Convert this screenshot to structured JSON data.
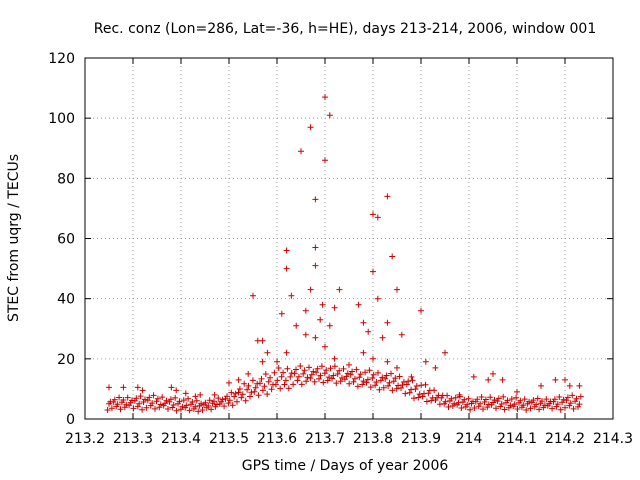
{
  "chart_data": {
    "type": "scatter",
    "title": "Rec. conz (Lon=286, Lat=-36, h=HE), days 213-214, 2006, window 001",
    "xlabel": "GPS time / Days of year 2006",
    "ylabel": "STEC from uqrg / TECUs",
    "xlim": [
      213.2,
      214.3
    ],
    "ylim": [
      0,
      120
    ],
    "x_ticks": [
      213.2,
      213.3,
      213.4,
      213.5,
      213.6,
      213.7,
      213.8,
      213.9,
      214.0,
      214.1,
      214.2,
      214.3
    ],
    "x_tick_labels": [
      "213.2",
      "213.3",
      "213.4",
      "213.5",
      "213.6",
      "213.7",
      "213.8",
      "213.9",
      "214",
      "214.1",
      "214.2",
      "214.3"
    ],
    "y_ticks": [
      0,
      20,
      40,
      60,
      80,
      100,
      120
    ],
    "y_tick_labels": [
      "0",
      "20",
      "40",
      "60",
      "80",
      "100",
      "120"
    ],
    "grid": true,
    "marker": "+",
    "color": "#cc0000",
    "series": [
      {
        "name": "STEC",
        "points": [
          [
            213.25,
            10.5
          ],
          [
            213.28,
            10.5
          ],
          [
            213.31,
            10.5
          ],
          [
            213.32,
            9.5
          ],
          [
            213.38,
            10.5
          ],
          [
            213.39,
            9.5
          ],
          [
            213.41,
            8.5
          ],
          [
            213.43,
            7.5
          ],
          [
            213.55,
            41
          ],
          [
            213.56,
            26
          ],
          [
            213.57,
            26
          ],
          [
            213.58,
            22
          ],
          [
            213.61,
            35
          ],
          [
            213.62,
            56
          ],
          [
            213.62,
            50
          ],
          [
            213.63,
            41
          ],
          [
            213.64,
            31
          ],
          [
            213.65,
            89
          ],
          [
            213.66,
            36
          ],
          [
            213.67,
            97
          ],
          [
            213.67,
            43
          ],
          [
            213.68,
            73
          ],
          [
            213.68,
            57
          ],
          [
            213.68,
            51
          ],
          [
            213.69,
            33
          ],
          [
            213.695,
            38
          ],
          [
            213.7,
            107
          ],
          [
            213.7,
            86
          ],
          [
            213.71,
            101
          ],
          [
            213.71,
            31
          ],
          [
            213.72,
            37
          ],
          [
            213.73,
            43
          ],
          [
            213.77,
            38
          ],
          [
            213.78,
            32
          ],
          [
            213.79,
            29
          ],
          [
            213.8,
            68
          ],
          [
            213.8,
            49
          ],
          [
            213.81,
            67
          ],
          [
            213.81,
            40
          ],
          [
            213.82,
            27
          ],
          [
            213.83,
            74
          ],
          [
            213.83,
            32
          ],
          [
            213.84,
            54
          ],
          [
            213.85,
            43
          ],
          [
            213.86,
            28
          ],
          [
            213.9,
            36
          ],
          [
            213.91,
            19
          ],
          [
            213.93,
            17
          ],
          [
            213.95,
            22
          ],
          [
            213.98,
            8
          ],
          [
            214.01,
            14
          ],
          [
            214.04,
            13
          ],
          [
            214.05,
            15
          ],
          [
            214.07,
            13
          ],
          [
            214.1,
            9
          ],
          [
            214.15,
            11
          ],
          [
            214.18,
            13
          ],
          [
            214.2,
            13
          ],
          [
            214.21,
            11
          ],
          [
            214.23,
            11
          ],
          [
            213.66,
            28
          ],
          [
            213.68,
            27
          ],
          [
            213.7,
            24
          ],
          [
            213.72,
            20
          ],
          [
            213.75,
            18
          ],
          [
            213.78,
            22
          ],
          [
            213.8,
            20
          ],
          [
            213.83,
            19
          ],
          [
            213.85,
            17
          ],
          [
            213.88,
            14
          ],
          [
            213.62,
            22
          ],
          [
            213.6,
            19
          ],
          [
            213.57,
            19
          ],
          [
            213.54,
            15
          ],
          [
            213.52,
            13
          ],
          [
            213.5,
            12
          ],
          [
            213.47,
            8
          ],
          [
            213.44,
            8
          ]
        ]
      }
    ],
    "band_envelope": {
      "x": [
        213.25,
        213.3,
        213.35,
        213.4,
        213.45,
        213.5,
        213.55,
        213.6,
        213.65,
        213.7,
        213.75,
        213.8,
        213.85,
        213.9,
        213.95,
        214.0,
        214.05,
        214.1,
        214.15,
        214.2,
        214.23
      ],
      "low": [
        3,
        3,
        3,
        2.5,
        2.5,
        4,
        6,
        9,
        11,
        12,
        11,
        10,
        9,
        6,
        4,
        3,
        3,
        3,
        3,
        3,
        3
      ],
      "high": [
        7,
        8,
        8,
        7,
        6,
        9,
        14,
        17,
        18,
        18,
        17,
        16,
        15,
        12,
        8,
        7,
        8,
        7,
        7,
        8,
        8
      ]
    }
  }
}
